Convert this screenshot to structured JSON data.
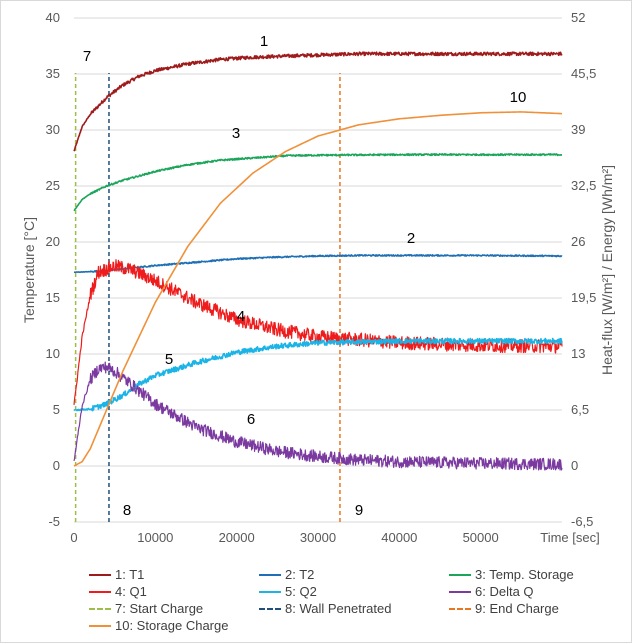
{
  "chart_data": {
    "type": "line",
    "xlabel": "Time [sec]",
    "ylabel_left": "Temperature [°C]",
    "ylabel_right": "Heat-flux [W/m²]  /  Energy [Wh/m²]",
    "xlim": [
      0,
      60000
    ],
    "ylim_left": [
      -5,
      40
    ],
    "ylim_right": [
      -6.5,
      52
    ],
    "x_ticks": [
      "0",
      "10000",
      "20000",
      "30000",
      "40000",
      "50000"
    ],
    "y_left_ticks": [
      "-5",
      "0",
      "5",
      "10",
      "15",
      "20",
      "25",
      "30",
      "35",
      "40"
    ],
    "y_right_ticks": [
      "-6,5",
      "0",
      "6,5",
      "13",
      "19,5",
      "26",
      "32,5",
      "39",
      "45,5",
      "52"
    ],
    "grid": "horizontal",
    "legend_placement": "bottom",
    "series": [
      {
        "name": "1: T1",
        "label": "1",
        "color": "#9e1b1b",
        "axis": "left",
        "noise": 0.15,
        "x": [
          0,
          1000,
          2000,
          4000,
          6000,
          8000,
          10000,
          14000,
          18000,
          22000,
          26000,
          30000,
          35000,
          40000,
          45000,
          50000,
          55000,
          60000
        ],
        "y": [
          28.1,
          30.3,
          31.4,
          32.9,
          34.0,
          34.8,
          35.3,
          35.9,
          36.3,
          36.5,
          36.6,
          36.7,
          36.8,
          36.8,
          36.8,
          36.8,
          36.8,
          36.8
        ]
      },
      {
        "name": "2: T2",
        "label": "2",
        "color": "#1f6fb4",
        "axis": "left",
        "noise": 0.06,
        "x": [
          0,
          2000,
          4000,
          6000,
          10000,
          15000,
          20000,
          25000,
          30000,
          35000,
          40000,
          50000,
          60000
        ],
        "y": [
          17.3,
          17.35,
          17.45,
          17.6,
          17.9,
          18.2,
          18.5,
          18.65,
          18.75,
          18.8,
          18.8,
          18.8,
          18.75
        ]
      },
      {
        "name": "3: Temp. Storage",
        "label": "3",
        "color": "#1aa55a",
        "axis": "left",
        "noise": 0.07,
        "x": [
          0,
          1000,
          2000,
          4000,
          6000,
          8000,
          10000,
          14000,
          18000,
          22000,
          26000,
          30000,
          40000,
          50000,
          60000
        ],
        "y": [
          22.8,
          23.8,
          24.3,
          25.0,
          25.5,
          25.9,
          26.3,
          26.9,
          27.3,
          27.5,
          27.7,
          27.75,
          27.8,
          27.8,
          27.8
        ]
      },
      {
        "name": "4: Q1",
        "label": "4",
        "color": "#ee1c1c",
        "axis": "right",
        "noise": 0.8,
        "x": [
          0,
          1000,
          2000,
          3000,
          5000,
          7000,
          10000,
          15000,
          20000,
          25000,
          30000,
          40000,
          50000,
          60000
        ],
        "y": [
          7,
          15,
          19.8,
          22.5,
          23.2,
          22.8,
          21.5,
          19.0,
          17.0,
          15.8,
          15.0,
          14.3,
          14.0,
          13.9
        ]
      },
      {
        "name": "5: Q2",
        "label": "5",
        "color": "#1cb4e6",
        "axis": "right",
        "noise": 0.3,
        "x": [
          0,
          2000,
          4000,
          6000,
          8000,
          10000,
          15000,
          20000,
          25000,
          30000,
          35000,
          40000,
          50000,
          60000
        ],
        "y": [
          6.5,
          6.6,
          7.2,
          8.2,
          9.5,
          10.5,
          12.0,
          13.2,
          13.9,
          14.3,
          14.4,
          14.5,
          14.5,
          14.5
        ]
      },
      {
        "name": "6: Delta Q",
        "label": "6",
        "color": "#7b3aa0",
        "axis": "right",
        "noise": 0.7,
        "x": [
          0,
          1000,
          2000,
          3000,
          4000,
          5000,
          7000,
          10000,
          15000,
          20000,
          25000,
          30000,
          35000,
          40000,
          50000,
          60000
        ],
        "y": [
          0.5,
          7.0,
          10.0,
          11.3,
          11.5,
          11.0,
          9.5,
          7.2,
          4.5,
          2.8,
          1.7,
          1.1,
          0.7,
          0.5,
          0.3,
          0.2
        ]
      },
      {
        "name": "10: Storage Charge",
        "label": "10",
        "color": "#f0913a",
        "axis": "right",
        "noise": 0,
        "x": [
          0,
          1000,
          2000,
          4000,
          6000,
          8000,
          10000,
          14000,
          18000,
          22000,
          26000,
          30000,
          35000,
          40000,
          45000,
          50000,
          55000,
          60000
        ],
        "y": [
          0,
          0.5,
          2.0,
          6.5,
          11.0,
          15.0,
          19.0,
          25.5,
          30.5,
          34.0,
          36.5,
          38.3,
          39.6,
          40.3,
          40.7,
          41.0,
          41.1,
          40.9
        ]
      }
    ],
    "vlines": [
      {
        "name": "7: Start Charge",
        "label": "7",
        "color": "#9cbf4a",
        "x": 200
      },
      {
        "name": "8: Wall Penetrated",
        "label": "8",
        "color": "#1f4f7a",
        "x": 4300
      },
      {
        "name": "9: End Charge",
        "label": "9",
        "color": "#e87722",
        "x": 32700
      }
    ]
  },
  "legend": [
    {
      "text": "1: T1",
      "color": "#9e1b1b",
      "dashed": false
    },
    {
      "text": "2: T2",
      "color": "#1f6fb4",
      "dashed": false
    },
    {
      "text": "3: Temp. Storage",
      "color": "#1aa55a",
      "dashed": false
    },
    {
      "text": "4: Q1",
      "color": "#ee1c1c",
      "dashed": false
    },
    {
      "text": "5: Q2",
      "color": "#1cb4e6",
      "dashed": false
    },
    {
      "text": "6: Delta Q",
      "color": "#7b3aa0",
      "dashed": false
    },
    {
      "text": "7: Start Charge",
      "color": "#9cbf4a",
      "dashed": true
    },
    {
      "text": "8: Wall Penetrated",
      "color": "#1f4f7a",
      "dashed": true
    },
    {
      "text": "9: End Charge",
      "color": "#e87722",
      "dashed": true
    },
    {
      "text": "10: Storage Charge",
      "color": "#f0913a",
      "dashed": false
    }
  ]
}
